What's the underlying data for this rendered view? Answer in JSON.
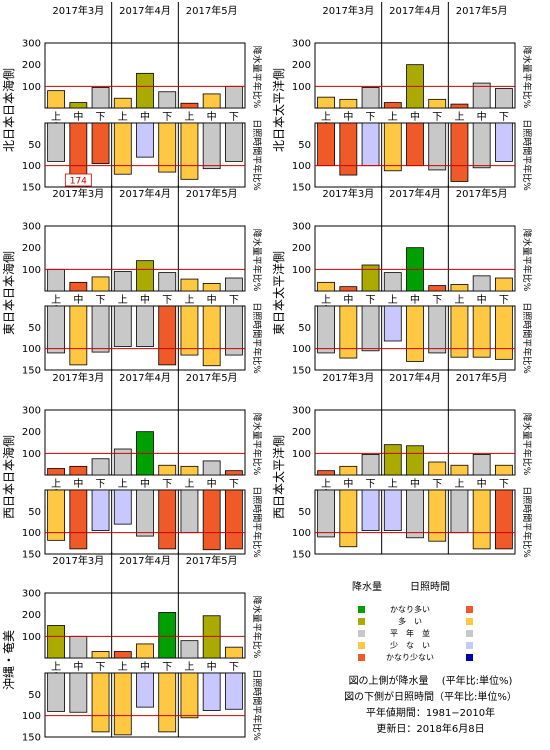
{
  "chart_data": [
    {
      "type": "bar",
      "title": "北日本日本海側",
      "months": [
        "2017年3月",
        "2017年4月",
        "2017年5月"
      ],
      "categories": [
        "上",
        "中",
        "下",
        "上",
        "中",
        "下",
        "上",
        "中",
        "下"
      ],
      "precip_label": "降水量平年比%",
      "sunshine_label": "日照時間平年比%",
      "precip_ylim": [
        0,
        300
      ],
      "precip_ticks": [
        100,
        200,
        300
      ],
      "sunshine_ylim": [
        0,
        150
      ],
      "sunshine_ticks": [
        50,
        100,
        150
      ],
      "series": [
        {
          "name": "降水量",
          "values": [
            80,
            25,
            95,
            45,
            160,
            75,
            22,
            65,
            100
          ],
          "colors": [
            "#ffc843",
            "#aaaa00",
            "#c8c8c8",
            "#ffc843",
            "#aaaa00",
            "#c8c8c8",
            "#f05a28",
            "#ffc843",
            "#c8c8c8"
          ]
        },
        {
          "name": "日照時間",
          "values": [
            90,
            174,
            95,
            120,
            80,
            115,
            132,
            107,
            90
          ],
          "colors": [
            "#c8c8c8",
            "#f05a28",
            "#f05a28",
            "#ffc843",
            "#c8c8ff",
            "#ffc843",
            "#ffc843",
            "#c8c8c8",
            "#c8c8c8"
          ]
        }
      ],
      "annotations": [
        {
          "text": "174"
        }
      ]
    },
    {
      "type": "bar",
      "title": "北日本太平洋側",
      "months": [
        "2017年3月",
        "2017年4月",
        "2017年5月"
      ],
      "categories": [
        "上",
        "中",
        "下",
        "上",
        "中",
        "下",
        "上",
        "中",
        "下"
      ],
      "precip_label": "降水量平年比%",
      "sunshine_label": "日照時間平年比%",
      "precip_ylim": [
        0,
        300
      ],
      "precip_ticks": [
        100,
        200,
        300
      ],
      "sunshine_ylim": [
        0,
        150
      ],
      "sunshine_ticks": [
        50,
        100,
        150
      ],
      "series": [
        {
          "name": "降水量",
          "values": [
            50,
            40,
            95,
            25,
            200,
            40,
            18,
            115,
            90
          ],
          "colors": [
            "#ffc843",
            "#ffc843",
            "#c8c8c8",
            "#f05a28",
            "#aaaa00",
            "#ffc843",
            "#f05a28",
            "#c8c8c8",
            "#c8c8c8"
          ]
        },
        {
          "name": "日照時間",
          "values": [
            100,
            122,
            100,
            112,
            100,
            110,
            137,
            105,
            90
          ],
          "colors": [
            "#f05a28",
            "#f05a28",
            "#c8c8ff",
            "#ffc843",
            "#f05a28",
            "#c8c8c8",
            "#f05a28",
            "#c8c8c8",
            "#c8c8ff"
          ]
        }
      ]
    },
    {
      "type": "bar",
      "title": "東日本日本海側",
      "months": [
        "2017年3月",
        "2017年4月",
        "2017年5月"
      ],
      "categories": [
        "上",
        "中",
        "下",
        "上",
        "中",
        "下",
        "上",
        "中",
        "下"
      ],
      "precip_label": "降水量平年比%",
      "sunshine_label": "日照時間平年比%",
      "precip_ylim": [
        0,
        300
      ],
      "precip_ticks": [
        100,
        200,
        300
      ],
      "sunshine_ylim": [
        0,
        150
      ],
      "sunshine_ticks": [
        50,
        100,
        150
      ],
      "series": [
        {
          "name": "降水量",
          "values": [
            100,
            40,
            65,
            90,
            140,
            85,
            55,
            35,
            60
          ],
          "colors": [
            "#c8c8c8",
            "#f05a28",
            "#ffc843",
            "#c8c8c8",
            "#aaaa00",
            "#c8c8c8",
            "#ffc843",
            "#ffc843",
            "#c8c8c8"
          ]
        },
        {
          "name": "日照時間",
          "values": [
            110,
            138,
            108,
            95,
            95,
            138,
            115,
            140,
            115
          ],
          "colors": [
            "#c8c8c8",
            "#ffc843",
            "#c8c8c8",
            "#c8c8c8",
            "#c8c8c8",
            "#f05a28",
            "#ffc843",
            "#ffc843",
            "#c8c8c8"
          ]
        }
      ]
    },
    {
      "type": "bar",
      "title": "東日本太平洋側",
      "months": [
        "2017年3月",
        "2017年4月",
        "2017年5月"
      ],
      "categories": [
        "上",
        "中",
        "下",
        "上",
        "中",
        "下",
        "上",
        "中",
        "下"
      ],
      "precip_label": "降水量平年比%",
      "sunshine_label": "日照時間平年比%",
      "precip_ylim": [
        0,
        300
      ],
      "precip_ticks": [
        100,
        200,
        300
      ],
      "sunshine_ylim": [
        0,
        150
      ],
      "sunshine_ticks": [
        50,
        100,
        150
      ],
      "series": [
        {
          "name": "降水量",
          "values": [
            40,
            20,
            120,
            85,
            200,
            25,
            30,
            70,
            60
          ],
          "colors": [
            "#ffc843",
            "#f05a28",
            "#aaaa00",
            "#c8c8c8",
            "#00a000",
            "#f05a28",
            "#ffc843",
            "#c8c8c8",
            "#ffc843"
          ]
        },
        {
          "name": "日照時間",
          "values": [
            110,
            122,
            105,
            82,
            130,
            110,
            120,
            120,
            125
          ],
          "colors": [
            "#c8c8c8",
            "#ffc843",
            "#c8c8c8",
            "#c8c8ff",
            "#ffc843",
            "#c8c8c8",
            "#ffc843",
            "#ffc843",
            "#ffc843"
          ]
        }
      ]
    },
    {
      "type": "bar",
      "title": "西日本日本海側",
      "months": [
        "2017年3月",
        "2017年4月",
        "2017年5月"
      ],
      "categories": [
        "上",
        "中",
        "下",
        "上",
        "中",
        "下",
        "上",
        "中",
        "下"
      ],
      "precip_label": "降水量平年比%",
      "sunshine_label": "日照時間平年比%",
      "precip_ylim": [
        0,
        300
      ],
      "precip_ticks": [
        100,
        200,
        300
      ],
      "sunshine_ylim": [
        0,
        150
      ],
      "sunshine_ticks": [
        50,
        100,
        150
      ],
      "series": [
        {
          "name": "降水量",
          "values": [
            30,
            40,
            75,
            120,
            200,
            45,
            40,
            65,
            20
          ],
          "colors": [
            "#f05a28",
            "#f05a28",
            "#c8c8c8",
            "#c8c8c8",
            "#00a000",
            "#ffc843",
            "#ffc843",
            "#c8c8c8",
            "#f05a28"
          ]
        },
        {
          "name": "日照時間",
          "values": [
            118,
            138,
            95,
            80,
            108,
            138,
            100,
            140,
            138
          ],
          "colors": [
            "#ffc843",
            "#f05a28",
            "#c8c8ff",
            "#c8c8ff",
            "#c8c8c8",
            "#f05a28",
            "#c8c8c8",
            "#f05a28",
            "#f05a28"
          ]
        }
      ]
    },
    {
      "type": "bar",
      "title": "西日本太平洋側",
      "months": [
        "2017年3月",
        "2017年4月",
        "2017年5月"
      ],
      "categories": [
        "上",
        "中",
        "下",
        "上",
        "中",
        "下",
        "上",
        "中",
        "下"
      ],
      "precip_label": "降水量平年比%",
      "sunshine_label": "日照時間平年比%",
      "precip_ylim": [
        0,
        300
      ],
      "precip_ticks": [
        100,
        200,
        300
      ],
      "sunshine_ylim": [
        0,
        150
      ],
      "sunshine_ticks": [
        50,
        100,
        150
      ],
      "series": [
        {
          "name": "降水量",
          "values": [
            20,
            40,
            95,
            140,
            135,
            60,
            45,
            95,
            45
          ],
          "colors": [
            "#f05a28",
            "#ffc843",
            "#c8c8c8",
            "#aaaa00",
            "#aaaa00",
            "#ffc843",
            "#ffc843",
            "#c8c8c8",
            "#ffc843"
          ]
        },
        {
          "name": "日照時間",
          "values": [
            110,
            133,
            95,
            95,
            112,
            120,
            100,
            138,
            138
          ],
          "colors": [
            "#c8c8c8",
            "#ffc843",
            "#c8c8ff",
            "#c8c8ff",
            "#c8c8c8",
            "#ffc843",
            "#c8c8c8",
            "#ffc843",
            "#f05a28"
          ]
        }
      ]
    },
    {
      "type": "bar",
      "title": "沖縄・奄美",
      "months": [
        "2017年3月",
        "2017年4月",
        "2017年5月"
      ],
      "categories": [
        "上",
        "中",
        "下",
        "上",
        "中",
        "下",
        "上",
        "中",
        "下"
      ],
      "precip_label": "降水量平年比%",
      "sunshine_label": "日照時間平年比%",
      "precip_ylim": [
        0,
        300
      ],
      "precip_ticks": [
        100,
        200,
        300
      ],
      "sunshine_ylim": [
        0,
        150
      ],
      "sunshine_ticks": [
        50,
        100,
        150
      ],
      "series": [
        {
          "name": "降水量",
          "values": [
            150,
            100,
            30,
            30,
            65,
            210,
            80,
            195,
            50
          ],
          "colors": [
            "#aaaa00",
            "#c8c8c8",
            "#ffc843",
            "#f05a28",
            "#ffc843",
            "#00a000",
            "#c8c8c8",
            "#aaaa00",
            "#ffc843"
          ]
        },
        {
          "name": "日照時間",
          "values": [
            90,
            92,
            138,
            145,
            80,
            138,
            105,
            88,
            85
          ],
          "colors": [
            "#c8c8c8",
            "#c8c8c8",
            "#ffc843",
            "#ffc843",
            "#c8c8ff",
            "#ffc843",
            "#ffc843",
            "#c8c8ff",
            "#c8c8ff"
          ]
        }
      ]
    }
  ],
  "legend": {
    "precip_header": "降水量",
    "sunshine_header": "日照時間",
    "rows": [
      {
        "label": "かなり多い",
        "precip_color": "#00a000",
        "sunshine_color": "#f05a28"
      },
      {
        "label": "多　い",
        "precip_color": "#aaaa00",
        "sunshine_color": "#ffc843"
      },
      {
        "label": "平　年　並",
        "precip_color": "#c8c8c8",
        "sunshine_color": "#c8c8c8"
      },
      {
        "label": "少　な　い",
        "precip_color": "#ffc843",
        "sunshine_color": "#c8c8ff"
      },
      {
        "label": "かなり少ない",
        "precip_color": "#f05a28",
        "sunshine_color": "#0000aa"
      }
    ],
    "notes": [
      "図の上側が降水量　 (平年比:単位%)",
      "図の下側が日照時間（平年比:単位%）",
      "平年値期間：1981−2010年",
      "更新日：2018年6月8日"
    ]
  }
}
